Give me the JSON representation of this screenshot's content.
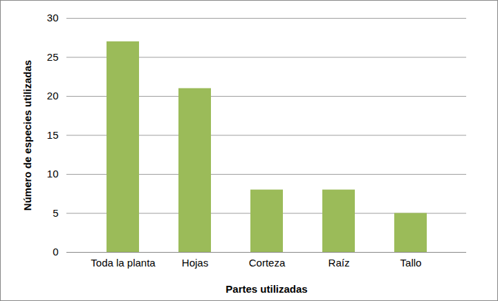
{
  "chart_data": {
    "type": "bar",
    "x_label": "Partes utilizadas",
    "y_label": "Número de especies utilizadas",
    "categories": [
      "Toda la planta",
      "Hojas",
      "Corteza",
      "Raíz",
      "Tallo"
    ],
    "values": [
      27,
      21,
      8,
      8,
      5
    ],
    "color": "#9bbb59",
    "ylim": [
      0,
      30
    ],
    "yticks": [
      0,
      5,
      10,
      15,
      20,
      25,
      30
    ],
    "grid": true
  }
}
